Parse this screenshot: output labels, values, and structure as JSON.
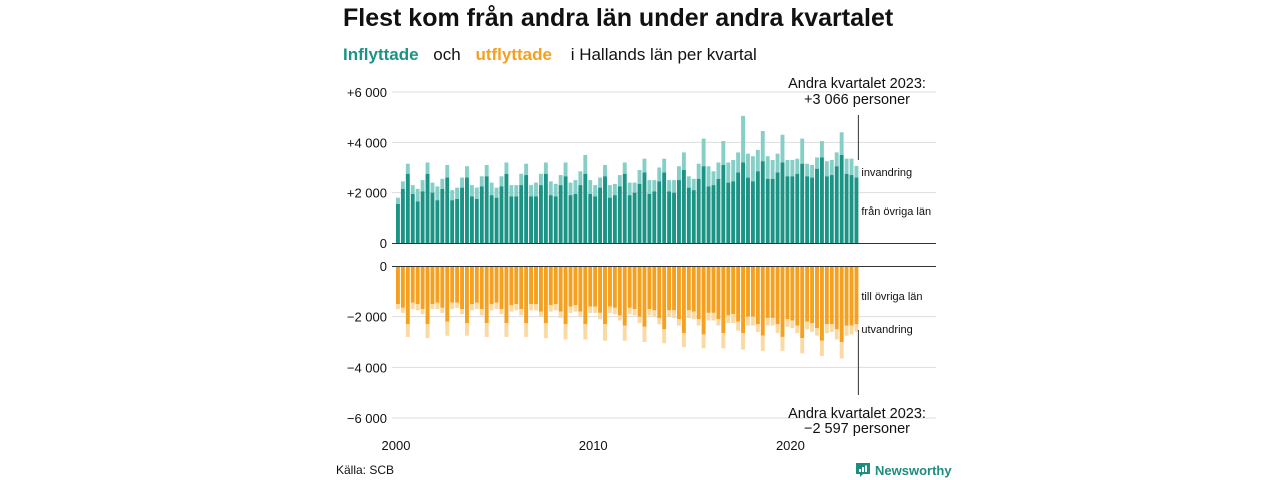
{
  "title": "Flest kom från andra län under andra kvartalet",
  "subtitle": {
    "inflow": "Inflyttade",
    "and": "och",
    "outflow": "utflyttade",
    "rest": "i Hallands  län  per  kvartal"
  },
  "source": "Källa: SCB",
  "brand": "Newsworthy",
  "colors": {
    "in_dark": "#1b9385",
    "in_light": "#86cfc7",
    "out_dark": "#f5a01f",
    "out_light": "#fbd9a2",
    "grid": "#dddddd",
    "axis": "#333333"
  },
  "annotations": {
    "top_line1": "Andra kvartalet 2023:",
    "top_line2": "+3 066 personer",
    "bottom_line1": "Andra kvartalet 2023:",
    "bottom_line2": "−2 597 personer"
  },
  "chart_data": {
    "type": "bar",
    "stacked": true,
    "period_start": "2000 Q1",
    "period_end": "2023 Q2",
    "quarters_per_year": 4,
    "x_tick_labels": [
      "2000",
      "2010",
      "2020"
    ],
    "inflow_y_ticks": [
      "+6 000",
      "+4 000",
      "+2 000",
      "0"
    ],
    "outflow_y_ticks": [
      "0",
      "−2 000",
      "−4 000",
      "−6 000"
    ],
    "inflow_ylim": [
      0,
      6000
    ],
    "outflow_ylim": [
      -6000,
      0
    ],
    "series_labels": {
      "invandring": "invandring",
      "fran_ovriga_lan": "från övriga län",
      "till_ovriga_lan": "till övriga län",
      "utvandring": "utvandring"
    },
    "inflow_from_other_counties": [
      1550,
      2150,
      2750,
      1950,
      1650,
      2050,
      2750,
      2000,
      1700,
      2150,
      2600,
      1700,
      1750,
      2200,
      2600,
      1850,
      1750,
      2250,
      2650,
      1900,
      1800,
      2250,
      2750,
      1850,
      1850,
      2300,
      2700,
      1850,
      1850,
      2300,
      2750,
      1900,
      1850,
      2300,
      2650,
      1900,
      1950,
      2300,
      2750,
      1950,
      1850,
      2200,
      2650,
      1800,
      1900,
      2250,
      2750,
      1900,
      2000,
      2350,
      2800,
      1950,
      2050,
      2450,
      2800,
      2050,
      2000,
      2500,
      2900,
      2200,
      2100,
      2550,
      3050,
      2250,
      2300,
      2550,
      3100,
      2400,
      2450,
      2800,
      3200,
      2600,
      2450,
      2850,
      3250,
      2550,
      2550,
      2800,
      3200,
      2650,
      2650,
      2750,
      3150,
      2650,
      2600,
      2950,
      3400,
      2650,
      2700,
      3050,
      3500,
      2750,
      2700,
      2600
    ],
    "inflow_total": [
      1800,
      2450,
      3150,
      2300,
      2150,
      2500,
      3200,
      2400,
      2250,
      2550,
      3100,
      2100,
      2200,
      2600,
      3050,
      2300,
      2200,
      2650,
      3100,
      2400,
      2200,
      2650,
      3200,
      2300,
      2300,
      2750,
      3150,
      2300,
      2400,
      2750,
      3200,
      2450,
      2350,
      2700,
      3200,
      2400,
      2500,
      2850,
      3500,
      2500,
      2300,
      2600,
      3100,
      2300,
      2350,
      2700,
      3200,
      2400,
      2400,
      2900,
      3350,
      2500,
      2500,
      3000,
      3350,
      2500,
      2500,
      3050,
      3600,
      2650,
      2550,
      3150,
      4150,
      3050,
      2850,
      3200,
      4050,
      3200,
      3300,
      3600,
      5050,
      3550,
      3450,
      3700,
      4450,
      3450,
      3300,
      3550,
      4300,
      3300,
      3300,
      3350,
      4150,
      3150,
      3100,
      3400,
      4050,
      3250,
      3300,
      3600,
      4400,
      3350,
      3350,
      3066
    ],
    "outflow_to_other_counties": [
      -1500,
      -1650,
      -2300,
      -1450,
      -1500,
      -1700,
      -2300,
      -1500,
      -1450,
      -1650,
      -2200,
      -1450,
      -1450,
      -1700,
      -2250,
      -1500,
      -1450,
      -1700,
      -2250,
      -1500,
      -1450,
      -1700,
      -2250,
      -1550,
      -1500,
      -1700,
      -2250,
      -1500,
      -1500,
      -1800,
      -2250,
      -1550,
      -1500,
      -1800,
      -2300,
      -1600,
      -1550,
      -1800,
      -2300,
      -1600,
      -1600,
      -1850,
      -2300,
      -1600,
      -1650,
      -1950,
      -2350,
      -1650,
      -1700,
      -2000,
      -2400,
      -1700,
      -1750,
      -2050,
      -2500,
      -1750,
      -1750,
      -2100,
      -2650,
      -1750,
      -1800,
      -2100,
      -2700,
      -1850,
      -1850,
      -2100,
      -2650,
      -1950,
      -1900,
      -2200,
      -2650,
      -2000,
      -2000,
      -2300,
      -2750,
      -2050,
      -2050,
      -2300,
      -2800,
      -2100,
      -2150,
      -2350,
      -2850,
      -2200,
      -2250,
      -2450,
      -2950,
      -2300,
      -2300,
      -2500,
      -3000,
      -2350,
      -2350,
      -2300
    ],
    "outflow_total": [
      -1700,
      -1850,
      -2800,
      -1700,
      -1750,
      -1900,
      -2850,
      -1700,
      -1700,
      -1850,
      -2750,
      -1700,
      -1650,
      -1900,
      -2750,
      -1750,
      -1700,
      -1950,
      -2800,
      -1750,
      -1700,
      -1900,
      -2800,
      -1800,
      -1750,
      -1950,
      -2800,
      -1750,
      -1750,
      -2000,
      -2850,
      -1800,
      -1750,
      -2050,
      -2900,
      -1850,
      -1800,
      -2000,
      -2900,
      -1850,
      -1850,
      -2100,
      -2950,
      -1850,
      -1900,
      -2150,
      -2950,
      -1900,
      -1950,
      -2250,
      -3000,
      -1950,
      -2000,
      -2300,
      -3050,
      -2000,
      -2050,
      -2350,
      -3200,
      -2050,
      -2100,
      -2350,
      -3250,
      -2150,
      -2150,
      -2350,
      -3250,
      -2250,
      -2250,
      -2550,
      -3300,
      -2350,
      -2350,
      -2600,
      -3350,
      -2350,
      -2350,
      -2650,
      -3350,
      -2400,
      -2450,
      -2650,
      -3450,
      -2500,
      -2600,
      -2750,
      -3550,
      -2650,
      -2600,
      -2900,
      -3650,
      -2750,
      -2700,
      -2597
    ]
  }
}
